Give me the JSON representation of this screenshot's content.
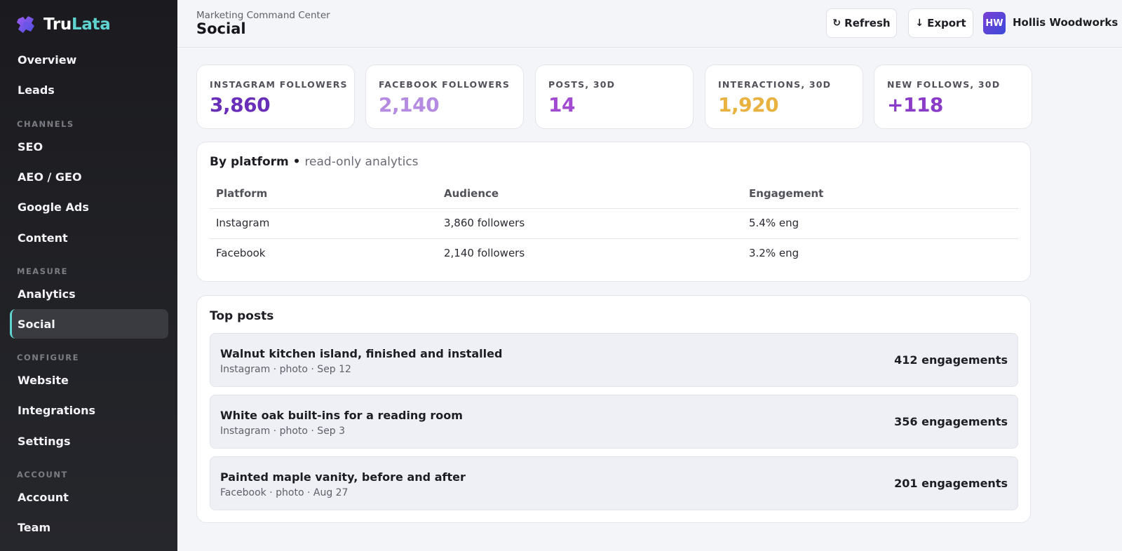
{
  "brand": {
    "name_part1": "Tru",
    "name_part2": "Lata",
    "logo_icon": "puzzle-logo-icon"
  },
  "sidebar": {
    "top_items": [
      {
        "label": "Overview"
      },
      {
        "label": "Leads"
      }
    ],
    "sections": [
      {
        "title": "CHANNELS",
        "items": [
          {
            "label": "SEO"
          },
          {
            "label": "AEO / GEO"
          },
          {
            "label": "Google Ads"
          },
          {
            "label": "Content"
          }
        ]
      },
      {
        "title": "MEASURE",
        "items": [
          {
            "label": "Analytics"
          },
          {
            "label": "Social",
            "active": true
          }
        ]
      },
      {
        "title": "CONFIGURE",
        "items": [
          {
            "label": "Website"
          },
          {
            "label": "Integrations"
          },
          {
            "label": "Settings"
          }
        ]
      },
      {
        "title": "ACCOUNT",
        "items": [
          {
            "label": "Account"
          },
          {
            "label": "Team"
          }
        ]
      }
    ]
  },
  "header": {
    "breadcrumb": "Marketing Command Center",
    "title": "Social",
    "refresh_label": "Refresh",
    "refresh_icon": "↻",
    "export_label": "Export",
    "export_icon": "↓",
    "avatar_initials": "HW",
    "org_name": "Hollis Woodworks"
  },
  "stats": [
    {
      "label": "INSTAGRAM FOLLOWERS",
      "value": "3,860",
      "color": "#6a2fb8"
    },
    {
      "label": "FACEBOOK FOLLOWERS",
      "value": "2,140",
      "color": "#b48be0"
    },
    {
      "label": "POSTS, 30D",
      "value": "14",
      "color": "#a24bd0"
    },
    {
      "label": "INTERACTIONS, 30D",
      "value": "1,920",
      "color": "#e9b13f"
    },
    {
      "label": "NEW FOLLOWS, 30D",
      "value": "+118",
      "color": "#8a3cc8"
    }
  ],
  "platform": {
    "title": "By platform",
    "separator": " • ",
    "subtitle": "read-only analytics",
    "columns": [
      "Platform",
      "Audience",
      "Engagement"
    ],
    "rows": [
      [
        "Instagram",
        "3,860 followers",
        "5.4% eng"
      ],
      [
        "Facebook",
        "2,140 followers",
        "3.2% eng"
      ]
    ]
  },
  "top_posts": {
    "title": "Top posts",
    "items": [
      {
        "title": "Walnut kitchen island, finished and installed",
        "meta": "Instagram · photo · Sep 12",
        "engagements": "412 engagements"
      },
      {
        "title": "White oak built-ins for a reading room",
        "meta": "Instagram · photo · Sep 3",
        "engagements": "356 engagements"
      },
      {
        "title": "Painted maple vanity, before and after",
        "meta": "Facebook · photo · Aug 27",
        "engagements": "201 engagements"
      }
    ]
  }
}
